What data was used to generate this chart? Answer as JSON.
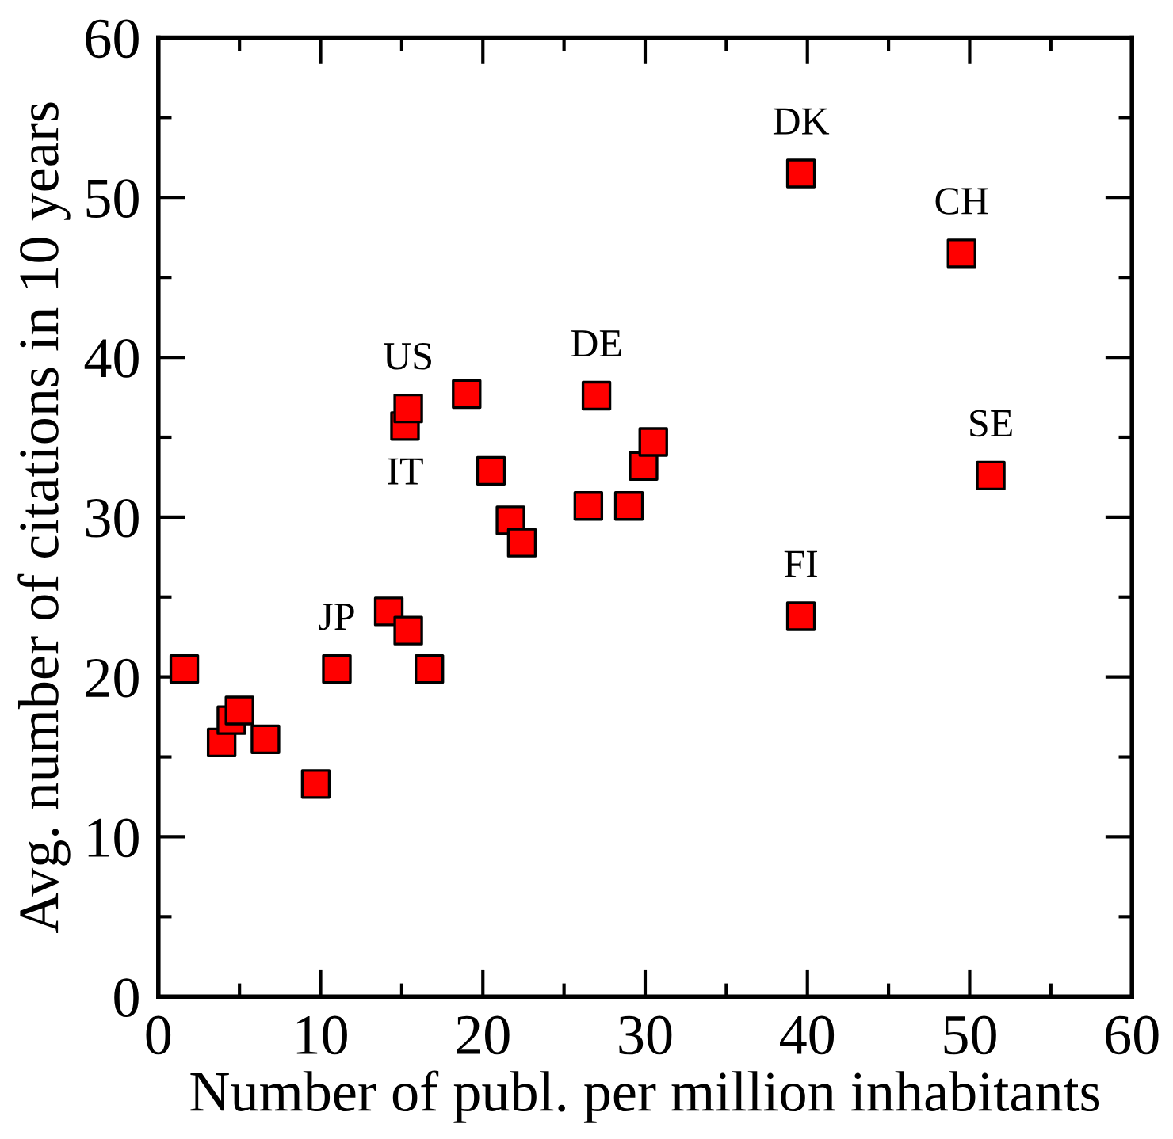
{
  "chart_data": {
    "type": "scatter",
    "xlabel": "Number of publ. per million inhabitants",
    "ylabel": "Avg. number of citations in 10 years",
    "x": [
      1.6,
      3.9,
      4.5,
      5.0,
      6.6,
      9.7,
      11.0,
      14.2,
      15.4,
      16.7,
      15.2,
      15.4,
      19.0,
      20.5,
      21.7,
      22.4,
      26.5,
      27.0,
      29.0,
      29.9,
      30.5,
      39.6,
      49.5,
      51.3,
      39.6
    ],
    "series": [
      {
        "color": "#ff0000",
        "values": [
          20.5,
          15.9,
          17.3,
          17.9,
          16.1,
          13.3,
          20.5,
          24.1,
          22.9,
          20.5,
          35.7,
          36.8,
          37.7,
          32.9,
          29.8,
          28.4,
          30.7,
          37.6,
          30.7,
          33.2,
          34.7,
          51.5,
          46.5,
          32.6,
          23.8
        ]
      }
    ],
    "marker": "square",
    "xlim": [
      0,
      60
    ],
    "ylim": [
      0,
      60
    ],
    "xticks": [
      0,
      {
        "value": 5,
        "label": null
      },
      10,
      {
        "value": 15,
        "label": null
      },
      20,
      {
        "value": 25,
        "label": null
      },
      30,
      {
        "value": 35,
        "label": null
      },
      40,
      {
        "value": 45,
        "label": null
      },
      50,
      {
        "value": 55,
        "label": null
      },
      60
    ],
    "yticks": [
      0,
      {
        "value": 5,
        "label": null
      },
      10,
      {
        "value": 15,
        "label": null
      },
      20,
      {
        "value": 25,
        "label": null
      },
      30,
      {
        "value": 35,
        "label": null
      },
      40,
      {
        "value": 45,
        "label": null
      },
      50,
      {
        "value": 55,
        "label": null
      },
      60
    ],
    "grid": false,
    "legend": false,
    "annotations": [
      {
        "text": "JP",
        "x": 11.0,
        "y": 20.5
      },
      {
        "text": "US",
        "x": 15.4,
        "y": 36.8
      },
      {
        "text": "IT",
        "x": 15.2,
        "y": 35.7
      },
      {
        "text": "DE",
        "x": 27.0,
        "y": 37.6
      },
      {
        "text": "DK",
        "x": 39.6,
        "y": 51.5
      },
      {
        "text": "CH",
        "x": 49.5,
        "y": 46.5
      },
      {
        "text": "SE",
        "x": 51.3,
        "y": 32.6
      },
      {
        "text": "FI",
        "x": 39.6,
        "y": 23.8
      }
    ]
  }
}
